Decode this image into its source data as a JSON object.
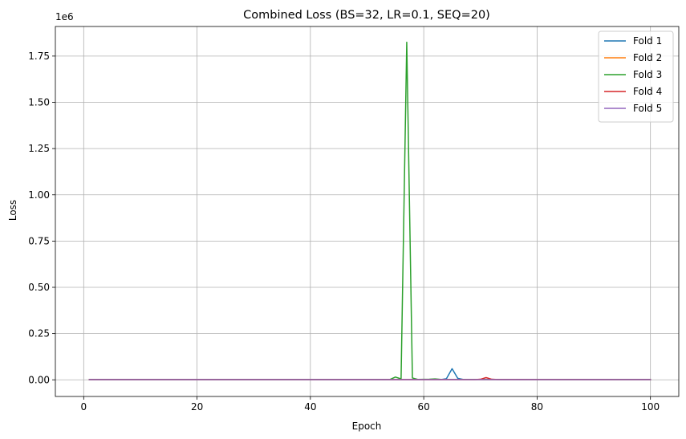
{
  "chart_data": {
    "type": "line",
    "title": "Combined Loss (BS=32, LR=0.1, SEQ=20)",
    "xlabel": "Epoch",
    "ylabel": "Loss",
    "y_multiplier_label": "1e6",
    "xlim": [
      -5,
      105
    ],
    "ylim": [
      -90000,
      1910000
    ],
    "xticks": [
      0,
      20,
      40,
      60,
      80,
      100
    ],
    "xtick_labels": [
      "0",
      "20",
      "40",
      "60",
      "80",
      "100"
    ],
    "yticks": [
      0,
      250000,
      500000,
      750000,
      1000000,
      1250000,
      1500000,
      1750000
    ],
    "ytick_labels": [
      "0.00",
      "0.25",
      "0.50",
      "0.75",
      "1.00",
      "1.25",
      "1.50",
      "1.75"
    ],
    "grid": true,
    "legend_position": "top-right",
    "series": [
      {
        "name": "Fold 1",
        "color": "#1f77b4",
        "points": [
          [
            1,
            1000
          ],
          [
            55,
            1000
          ],
          [
            62,
            2000
          ],
          [
            63,
            1000
          ],
          [
            64,
            6000
          ],
          [
            65,
            60000
          ],
          [
            66,
            8000
          ],
          [
            67,
            1500
          ],
          [
            100,
            1000
          ]
        ]
      },
      {
        "name": "Fold 2",
        "color": "#ff7f0e",
        "points": [
          [
            1,
            1000
          ],
          [
            100,
            1000
          ]
        ]
      },
      {
        "name": "Fold 3",
        "color": "#2ca02c",
        "points": [
          [
            1,
            1000
          ],
          [
            54,
            1500
          ],
          [
            55,
            15000
          ],
          [
            56,
            5000
          ],
          [
            57,
            1825000
          ],
          [
            58,
            10000
          ],
          [
            59,
            2000
          ],
          [
            61,
            3000
          ],
          [
            62,
            5000
          ],
          [
            63,
            2000
          ],
          [
            100,
            1000
          ]
        ]
      },
      {
        "name": "Fold 4",
        "color": "#d62728",
        "points": [
          [
            1,
            1000
          ],
          [
            69,
            1000
          ],
          [
            70,
            3000
          ],
          [
            71,
            12000
          ],
          [
            72,
            3000
          ],
          [
            73,
            1500
          ],
          [
            100,
            1000
          ]
        ]
      },
      {
        "name": "Fold 5",
        "color": "#9467bd",
        "points": [
          [
            1,
            1000
          ],
          [
            100,
            1000
          ]
        ]
      }
    ]
  }
}
